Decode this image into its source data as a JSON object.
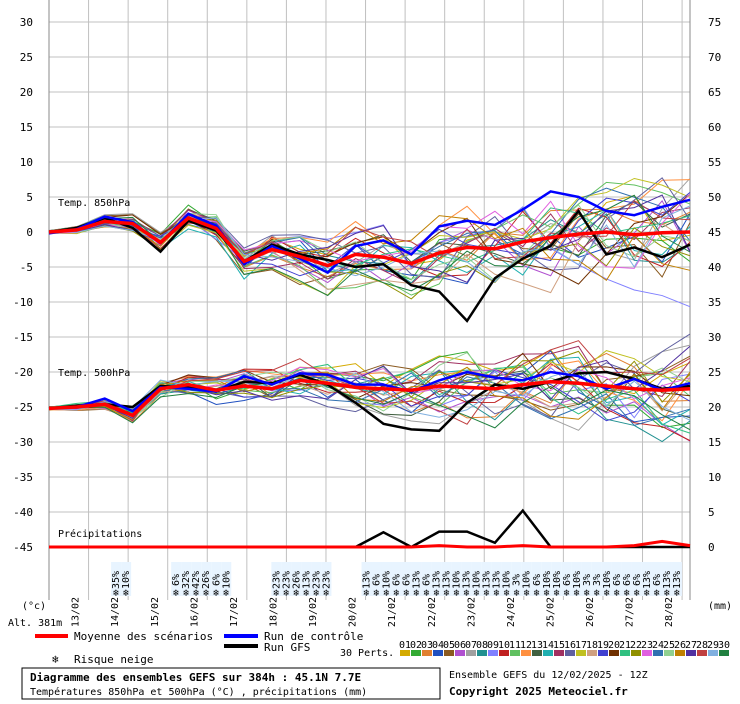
{
  "chart_data": {
    "type": "line",
    "left_axis": {
      "unit_label": "(°c)",
      "ticks": [
        30,
        25,
        20,
        15,
        10,
        5,
        0,
        -5,
        -10,
        -15,
        -20,
        -25,
        -30,
        -35,
        -40,
        -45
      ],
      "range": [
        -45,
        30
      ]
    },
    "right_axis": {
      "unit_label": "(mm)",
      "ticks": [
        75,
        70,
        65,
        60,
        55,
        50,
        45,
        40,
        35,
        30,
        25,
        20,
        15,
        10,
        5,
        0
      ],
      "range": [
        0,
        75
      ]
    },
    "altitude_label": "Alt. 381m",
    "x_dates": [
      "13/02",
      "14/02",
      "15/02",
      "16/02",
      "17/02",
      "18/02",
      "19/02",
      "20/02",
      "21/02",
      "22/02",
      "23/02",
      "24/02",
      "25/02",
      "26/02",
      "27/02",
      "28/02"
    ],
    "section_labels": {
      "t850": "Temp. 850hPa",
      "t500": "Temp. 500hPa",
      "precip": "Précipitations"
    },
    "t850": {
      "mean": [
        0,
        0.3,
        1.5,
        1.2,
        -1.5,
        2.0,
        0.5,
        -4.2,
        -2.5,
        -3.5,
        -4.8,
        -3.2,
        -3.6,
        -4.5,
        -3.0,
        -2.2,
        -2.4,
        -1.4,
        -0.8,
        -0.3,
        0,
        -0.4,
        -0.1,
        0
      ],
      "control": [
        -0.2,
        0.4,
        2.2,
        1.4,
        -1.6,
        2.6,
        0.9,
        -4.6,
        -2.0,
        -3.8,
        -5.8,
        -2.0,
        -1.2,
        -3.2,
        0.8,
        1.6,
        1.0,
        3.2,
        5.8,
        5.0,
        3.0,
        2.4,
        3.6,
        4.6
      ],
      "gfs": [
        0,
        0.6,
        2.0,
        0.6,
        -2.8,
        1.6,
        0.2,
        -4.2,
        -1.8,
        -3.2,
        -4.0,
        -5.0,
        -4.6,
        -7.6,
        -8.5,
        -12.7,
        -6.6,
        -3.8,
        -2.0,
        3.0,
        -3.2,
        -2.2,
        -3.6,
        -1.8
      ]
    },
    "t500": {
      "mean": [
        -25.2,
        -25.0,
        -24.6,
        -26.2,
        -22.4,
        -21.8,
        -22.6,
        -22.0,
        -22.4,
        -21.2,
        -21.6,
        -22.2,
        -22.4,
        -22.6,
        -22.0,
        -22.2,
        -22.4,
        -21.8,
        -21.4,
        -21.6,
        -22.0,
        -22.4,
        -22.6,
        -22.4
      ],
      "control": [
        -25.2,
        -25.0,
        -23.8,
        -25.6,
        -22.2,
        -22.4,
        -22.8,
        -20.6,
        -21.8,
        -20.2,
        -20.4,
        -21.8,
        -21.8,
        -22.8,
        -21.2,
        -20.0,
        -20.8,
        -21.2,
        -20.0,
        -20.6,
        -22.4,
        -21.0,
        -22.6,
        -21.6
      ],
      "gfs": [
        -25.2,
        -24.8,
        -24.6,
        -25.0,
        -22.0,
        -22.2,
        -22.8,
        -21.4,
        -21.6,
        -20.4,
        -21.8,
        -24.4,
        -27.4,
        -28.2,
        -28.4,
        -24.4,
        -21.8,
        -22.4,
        -21.4,
        -20.2,
        -20.0,
        -21.0,
        -22.4,
        -22.0
      ]
    },
    "precip": {
      "gfs": [
        0,
        0,
        0,
        0,
        0,
        0,
        0,
        0,
        0,
        0,
        0,
        0,
        2.1,
        0,
        2.2,
        2.2,
        0.6,
        5.2,
        0,
        0,
        0,
        0,
        0,
        0
      ],
      "mean": [
        0,
        0,
        0,
        0,
        0,
        0,
        0,
        0,
        0,
        0,
        0,
        0,
        0,
        0,
        0.2,
        0,
        0,
        0.2,
        0,
        0,
        0,
        0.2,
        0.8,
        0.2
      ]
    },
    "snow_risk": [
      {
        "i": 4,
        "labels": [
          "35%",
          "10%"
        ]
      },
      {
        "i": 10,
        "labels": [
          "6%",
          "32%",
          "42%",
          "26%",
          "6%",
          "10%"
        ]
      },
      {
        "i": 20,
        "labels": [
          "23%",
          "23%",
          "26%",
          "13%",
          "23%",
          "23%"
        ]
      },
      {
        "i": 29,
        "labels": [
          "13%",
          "6%",
          "10%",
          "6%",
          "6%",
          "13%",
          "6%",
          "13%",
          "13%",
          "10%",
          "13%",
          "10%",
          "13%",
          "13%",
          "10%",
          "3%",
          "10%",
          "6%",
          "10%",
          "10%",
          "6%",
          "10%",
          "3%",
          "3%",
          "10%",
          "6%",
          "6%",
          "6%",
          "13%",
          "6%",
          "13%",
          "13%"
        ]
      }
    ],
    "perts_label": "30 Perts.",
    "pert_numbers": [
      "01",
      "02",
      "03",
      "04",
      "05",
      "06",
      "07",
      "08",
      "09",
      "10",
      "11",
      "12",
      "13",
      "14",
      "15",
      "16",
      "17",
      "18",
      "19",
      "20",
      "21",
      "22",
      "23",
      "24",
      "25",
      "26",
      "27",
      "28",
      "29",
      "30"
    ],
    "pert_colors": [
      "#d4aa00",
      "#33aa33",
      "#e08030",
      "#2050c0",
      "#8a5a20",
      "#b050d0",
      "#a0a0a0",
      "#209090",
      "#8080ff",
      "#c02020",
      "#60c060",
      "#ff9040",
      "#406040",
      "#20b0b0",
      "#a03060",
      "#6060a0",
      "#c0c020",
      "#d0a080",
      "#4040d0",
      "#703000",
      "#30c080",
      "#909000",
      "#e060e0",
      "#3070b0",
      "#90d090",
      "#c08000",
      "#5030a0",
      "#c04040",
      "#80b0e0",
      "#208040"
    ],
    "legend": {
      "mean_label": "Moyenne des scénarios",
      "control_label": "Run de contrôle",
      "gfs_label": "Run GFS",
      "snow_label": "Risque neige"
    },
    "colors": {
      "mean": "#ff0000",
      "control": "#0000ff",
      "gfs": "#000000",
      "grid": "#c0c0c0",
      "snow": "#55aaff"
    },
    "title_box": {
      "line1": "Diagramme des ensembles GEFS sur 384h : 45.1N 7.7E",
      "line2": "Températures 850hPa et 500hPa (°C) , précipitations (mm)"
    },
    "info": {
      "run": "Ensemble GEFS du 12/02/2025 - 12Z",
      "copyright": "Copyright 2025 Meteociel.fr"
    }
  }
}
